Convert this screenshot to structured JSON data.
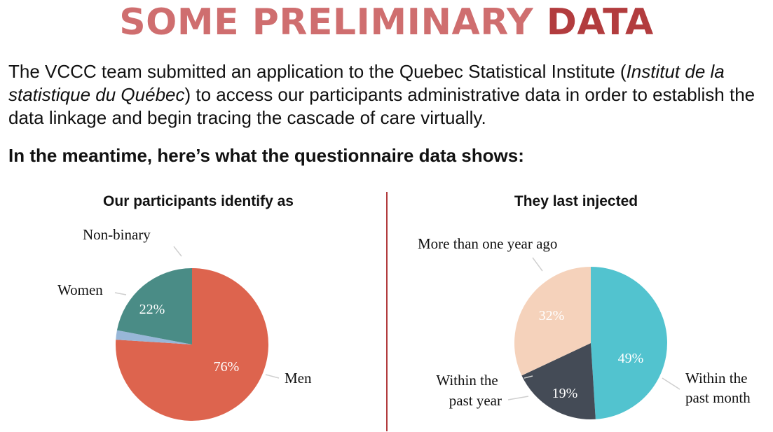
{
  "title": {
    "part1": "SOME PRELIMINARY",
    "part2": "DATA"
  },
  "intro": {
    "text_before": "The VCCC team submitted an application to the Quebec Statistical Institute (",
    "italic": "Institut de la statistique du Québec",
    "text_after": ") to access our participants administrative data in order to establish the data linkage and begin tracing the cascade of care virtually."
  },
  "lead": "In the meantime, here’s what the questionnaire data shows:",
  "colors": {
    "title_light": "#cf6e6f",
    "title_dark": "#b23c3e",
    "divider": "#b23c3e",
    "men": "#dd644e",
    "women": "#4a8c86",
    "nonbinary": "#98b7d8",
    "month": "#52c3cf",
    "year": "#444b56",
    "over_year": "#f5d2bb"
  },
  "chart_data": [
    {
      "type": "pie",
      "title": "Our participants identify as",
      "slices": [
        {
          "label": "Men",
          "value": 76,
          "value_label": "76%",
          "color": "#dd644e"
        },
        {
          "label": "Non-binary",
          "value": 2,
          "value_label": "",
          "color": "#98b7d8"
        },
        {
          "label": "Women",
          "value": 22,
          "value_label": "22%",
          "color": "#4a8c86"
        }
      ]
    },
    {
      "type": "pie",
      "title": "They last injected",
      "slices": [
        {
          "label": "Within the past month",
          "value": 49,
          "value_label": "49%",
          "color": "#52c3cf"
        },
        {
          "label": "Within the past year",
          "value": 19,
          "value_label": "19%",
          "color": "#444b56"
        },
        {
          "label": "More than one year ago",
          "value": 32,
          "value_label": "32%",
          "color": "#f5d2bb"
        }
      ]
    }
  ]
}
